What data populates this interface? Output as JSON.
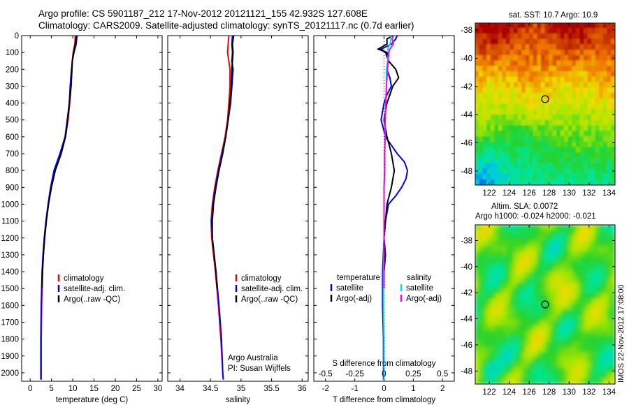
{
  "header": {
    "line1": "Argo profile: CS 5901187_212 17-Nov-2012 20121121_155 42.932S 127.608E",
    "line2": "Climatology: CARS2009. Satellite-adjusted climatology: synTS_20121117.nc (0.7d earlier)"
  },
  "stamp": "IMOS 22-Nov-2012 17:08:00",
  "colors": {
    "climatology": "#ff0000",
    "satellite": "#0000ff",
    "argo": "#000000",
    "satellite_s": "#00e5e5",
    "argo_s": "#ff00ff"
  },
  "chart_data": [
    {
      "type": "line",
      "title": "",
      "xlabel": "temperature (deg C)",
      "ylabel": "",
      "xlim": [
        -2,
        31
      ],
      "ylim": [
        2050,
        0
      ],
      "xticks": [
        "0",
        "5",
        "10",
        "15",
        "20",
        "25",
        "30"
      ],
      "yticks": [
        "0",
        "100",
        "200",
        "300",
        "400",
        "500",
        "600",
        "700",
        "800",
        "900",
        "1000",
        "1100",
        "1200",
        "1300",
        "1400",
        "1500",
        "1600",
        "1700",
        "1800",
        "1900",
        "2000"
      ],
      "legend": [
        "climatology",
        "satellite-adj. clim.",
        "Argo(..raw -QC)"
      ],
      "series": [
        {
          "name": "climatology",
          "color": "#ff0000",
          "depth": [
            0,
            50,
            100,
            150,
            200,
            300,
            400,
            500,
            600,
            700,
            800,
            900,
            1000,
            1100,
            1200,
            1300,
            1400,
            1600,
            1800,
            2000,
            2040
          ],
          "values": [
            10.6,
            10.5,
            10.1,
            9.9,
            9.8,
            9.6,
            9.3,
            8.9,
            8.3,
            7.1,
            5.7,
            4.9,
            4.3,
            3.8,
            3.4,
            3.1,
            2.9,
            2.7,
            2.6,
            2.6,
            2.6
          ]
        },
        {
          "name": "satellite-adj. clim.",
          "color": "#0000ff",
          "depth": [
            0,
            50,
            100,
            150,
            200,
            300,
            400,
            500,
            600,
            700,
            800,
            900,
            1000,
            1100,
            1200,
            1300,
            1400,
            1600,
            1800,
            2000,
            2040
          ],
          "values": [
            11.0,
            10.8,
            10.3,
            9.9,
            9.7,
            9.4,
            9.2,
            8.7,
            8.2,
            7.0,
            5.6,
            4.8,
            4.2,
            3.7,
            3.3,
            3.0,
            2.8,
            2.6,
            2.5,
            2.5,
            2.5
          ]
        },
        {
          "name": "Argo(..raw -QC)",
          "color": "#000000",
          "depth": [
            0,
            50,
            100,
            150,
            200,
            300,
            400,
            500,
            600,
            700,
            800,
            900,
            1000,
            1100,
            1200,
            1300,
            1400,
            1500
          ],
          "values": [
            10.9,
            10.6,
            10.2,
            9.9,
            9.8,
            9.6,
            9.2,
            8.8,
            8.3,
            7.3,
            5.9,
            5.0,
            4.3,
            3.8,
            3.4,
            3.1,
            2.9,
            2.8
          ]
        }
      ]
    },
    {
      "type": "line",
      "xlabel": "salinity",
      "xlim": [
        33.8,
        36.1
      ],
      "ylim": [
        2050,
        0
      ],
      "xticks": [
        "34",
        "34.5",
        "35",
        "35.5",
        "36"
      ],
      "legend": [
        "climatology",
        "satellite-adj. clim.",
        "Argo(..raw -QC)"
      ],
      "annotation": [
        "Argo Australia",
        "PI: Susan Wijffels"
      ],
      "series": [
        {
          "name": "climatology",
          "color": "#ff0000",
          "depth": [
            0,
            50,
            100,
            150,
            200,
            300,
            400,
            500,
            600,
            700,
            800,
            900,
            1000,
            1100,
            1200,
            1300,
            1400,
            1600,
            1800,
            2000,
            2040
          ],
          "values": [
            34.8,
            34.79,
            34.78,
            34.8,
            34.82,
            34.82,
            34.8,
            34.78,
            34.74,
            34.68,
            34.62,
            34.57,
            34.53,
            34.51,
            34.52,
            34.55,
            34.58,
            34.63,
            34.67,
            34.7,
            34.71
          ]
        },
        {
          "name": "satellite-adj. clim.",
          "color": "#0000ff",
          "depth": [
            0,
            50,
            100,
            150,
            200,
            300,
            400,
            500,
            600,
            700,
            800,
            900,
            1000,
            1100,
            1200,
            1300,
            1400,
            1600,
            1800,
            2000,
            2040
          ],
          "values": [
            34.86,
            34.85,
            34.86,
            34.85,
            34.87,
            34.85,
            34.83,
            34.79,
            34.75,
            34.69,
            34.63,
            34.58,
            34.54,
            34.52,
            34.53,
            34.56,
            34.59,
            34.64,
            34.68,
            34.7,
            34.71
          ]
        },
        {
          "name": "Argo(..raw -QC)",
          "color": "#000000",
          "depth": [
            0,
            50,
            100,
            150,
            200,
            300,
            400,
            500,
            600,
            700,
            800,
            900,
            1000,
            1100,
            1200,
            1300,
            1400,
            1500
          ],
          "values": [
            34.88,
            34.86,
            34.87,
            34.86,
            34.85,
            34.84,
            34.82,
            34.79,
            34.75,
            34.7,
            34.64,
            34.59,
            34.55,
            34.53,
            34.53,
            34.56,
            34.59,
            34.61
          ]
        }
      ]
    },
    {
      "type": "line",
      "xlabel": "T difference from climatology",
      "xlabel_top": "S difference from climatology",
      "xlim": [
        -2.4,
        2.4
      ],
      "ylim": [
        2050,
        0
      ],
      "xticks": [
        "-2",
        "-1",
        "0",
        "1",
        "2"
      ],
      "xticks_top": [
        "-0.5",
        "-0.25",
        "0",
        "0.25",
        "0.5"
      ],
      "legend_left": {
        "header": "temperature",
        "items": [
          "satellite",
          "Argo(-adj)"
        ]
      },
      "legend_right": {
        "header": "salinity",
        "items": [
          "satellite",
          "Argo(-adj)"
        ]
      },
      "series": [
        {
          "name": "temperature satellite",
          "color": "#0000ff",
          "depth": [
            0,
            20,
            50,
            80,
            100,
            150,
            200,
            250,
            300,
            350,
            400,
            500,
            600,
            700,
            750,
            800,
            850,
            900,
            950,
            1000,
            1100,
            1200,
            1400,
            1600,
            1800,
            2000,
            2040
          ],
          "values": [
            0.45,
            0.4,
            0.25,
            -0.1,
            0.05,
            0.15,
            0.1,
            0.2,
            0.25,
            0.1,
            0.0,
            -0.1,
            0.05,
            0.45,
            0.7,
            0.8,
            0.75,
            0.6,
            0.4,
            0.15,
            0.05,
            0.0,
            -0.05,
            -0.05,
            -0.02,
            -0.02,
            -0.02
          ]
        },
        {
          "name": "temperature Argo(-adj)",
          "color": "#000000",
          "depth": [
            0,
            20,
            50,
            80,
            100,
            150,
            200,
            250,
            300,
            350,
            400,
            500,
            600,
            700,
            800,
            900,
            1000,
            1100,
            1200,
            1300,
            1400,
            1500
          ],
          "values": [
            0.3,
            0.1,
            0.1,
            -0.2,
            0.1,
            0.15,
            0.4,
            0.5,
            0.3,
            0.2,
            0.1,
            0.0,
            0.1,
            0.25,
            0.35,
            0.25,
            0.1,
            0.05,
            0.0,
            0.05,
            0.0,
            0.0
          ]
        },
        {
          "name": "salinity satellite",
          "color": "#00e5e5",
          "depth": [
            0,
            20,
            50,
            80,
            100,
            150,
            200,
            300,
            400,
            500,
            600,
            700,
            800,
            900,
            1000,
            1100,
            1200,
            1400,
            1600,
            1800,
            2000,
            2040
          ],
          "values": [
            0.06,
            0.06,
            0.05,
            0.03,
            0.04,
            0.03,
            0.02,
            0.02,
            0.015,
            0.01,
            0.01,
            0.005,
            0.005,
            0.0,
            0.0,
            0.0,
            0.0,
            -0.005,
            -0.005,
            0.0,
            0.0,
            0.0
          ]
        },
        {
          "name": "salinity Argo(-adj)",
          "color": "#ff00ff",
          "depth": [
            0,
            20,
            50,
            80,
            100,
            150,
            200,
            300,
            400,
            500,
            600,
            700,
            800,
            900,
            1000,
            1100,
            1200,
            1300,
            1400,
            1500
          ],
          "values": [
            0.08,
            0.07,
            0.08,
            0.05,
            0.04,
            0.035,
            0.03,
            0.02,
            0.015,
            0.01,
            0.01,
            0.005,
            0.005,
            0.0,
            0.0,
            0.0,
            0.0,
            0.0,
            0.0,
            0.0
          ]
        }
      ]
    },
    {
      "type": "heatmap",
      "title": "sat. SST: 10.7 Argo: 10.9",
      "xlim": [
        120.6,
        134.6
      ],
      "ylim": [
        -49,
        -37.5
      ],
      "xticks": [
        "122",
        "124",
        "126",
        "128",
        "130",
        "132",
        "134"
      ],
      "yticks": [
        "-38",
        "-40",
        "-42",
        "-44",
        "-46",
        "-48"
      ],
      "marker": {
        "lon": 127.6,
        "lat": -42.9
      }
    },
    {
      "type": "heatmap",
      "title_line1": "Altim. SLA: 0.0072",
      "title_line2": "Argo h1000: -0.024 h2000: -0.021",
      "xlim": [
        120.6,
        134.6
      ],
      "ylim": [
        -49,
        -36.8
      ],
      "xticks": [
        "122",
        "124",
        "126",
        "128",
        "130",
        "132",
        "134"
      ],
      "yticks": [
        "-38",
        "-40",
        "-42",
        "-44",
        "-46",
        "-48"
      ],
      "marker": {
        "lon": 127.6,
        "lat": -42.9
      }
    }
  ]
}
